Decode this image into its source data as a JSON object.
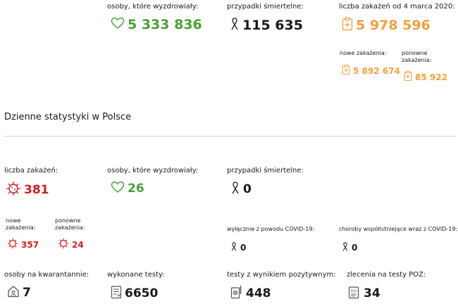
{
  "summary": {
    "recovered_label": "osoby, które wyzdrowiały:",
    "recovered_value": "5 333 836",
    "deaths_label": "przypadki śmiertelne:",
    "deaths_value": "115 635",
    "infections_label": "liczba zakażeń od 4 marca 2020:",
    "infections_value": "5 978 596",
    "new_infections_label": "nowe zakażenia:",
    "new_infections_value": "5 892 674",
    "reinfections_label": "ponowne zakażenia:",
    "reinfections_value": "85 922"
  },
  "daily": {
    "title": "Dzienne statystyki w Polsce",
    "infections_label": "liczba zakażeń:",
    "infections_value": "381",
    "recovered_label": "osoby, które wyzdrowiały:",
    "recovered_value": "26",
    "deaths_label": "przypadki śmiertelne:",
    "deaths_value": "0",
    "new_label": "nowe zakażenia:",
    "new_value": "357",
    "reinf_label": "ponowne zakażenia:",
    "reinf_value": "24",
    "covid_only_label": "wyłącznie z powodu COVID-19:",
    "covid_only_value": "0",
    "comorbid_label": "choroby współistniejące wraz z COVID-19:",
    "comorbid_value": "0",
    "quarantine_label": "osoby na kwarantannie:",
    "quarantine_value": "7",
    "tests_label": "wykonane testy:",
    "tests_value": "6650",
    "positive_label": "testy z wynikiem pozytywnym:",
    "positive_value": "448",
    "poz_label": "zlecenia na testy POZ:",
    "poz_value": "34"
  },
  "colors": {
    "green": "#4a9f35",
    "orange": "#f2a03d",
    "red": "#d11d1d",
    "dark": "#1a1a1a"
  },
  "icons": {
    "heart": "heart-icon",
    "ribbon": "ribbon-icon",
    "clipboard": "medical-clipboard-icon",
    "virus": "virus-icon",
    "house": "house-icon",
    "test_list": "test-list-icon",
    "test_tube": "test-tube-icon",
    "poz_box": "poz-order-icon"
  }
}
